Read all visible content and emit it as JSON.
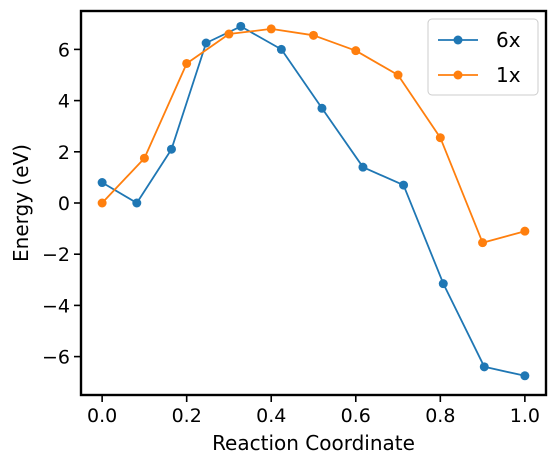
{
  "chart_data": {
    "type": "line",
    "title": "",
    "xlabel": "Reaction Coordinate",
    "ylabel": "Energy (eV)",
    "xlim": [
      -0.05,
      1.05
    ],
    "ylim": [
      -7.5,
      7.5
    ],
    "xticks": [
      0.0,
      0.2,
      0.4,
      0.6,
      0.8,
      1.0
    ],
    "xtick_labels": [
      "0.0",
      "0.2",
      "0.4",
      "0.6",
      "0.8",
      "1.0"
    ],
    "yticks": [
      -6,
      -4,
      -2,
      0,
      2,
      4,
      6
    ],
    "ytick_labels": [
      "−6",
      "−4",
      "−2",
      "0",
      "2",
      "4",
      "6"
    ],
    "grid": false,
    "legend_position": "top-right",
    "series": [
      {
        "name": "6x",
        "color": "#1f77b4",
        "x": [
          0.0,
          0.082,
          0.164,
          0.246,
          0.328,
          0.424,
          0.52,
          0.617,
          0.713,
          0.807,
          0.904,
          1.0
        ],
        "y": [
          0.8,
          0.0,
          2.1,
          6.25,
          6.9,
          6.0,
          3.7,
          1.4,
          0.7,
          -3.15,
          -6.4,
          -6.75
        ]
      },
      {
        "name": "1x",
        "color": "#ff7f0e",
        "x": [
          0.0,
          0.1,
          0.2,
          0.3,
          0.4,
          0.5,
          0.6,
          0.7,
          0.8,
          0.9,
          1.0
        ],
        "y": [
          0.0,
          1.75,
          5.45,
          6.6,
          6.8,
          6.55,
          5.95,
          5.0,
          2.55,
          -1.55,
          -1.1
        ]
      }
    ]
  }
}
